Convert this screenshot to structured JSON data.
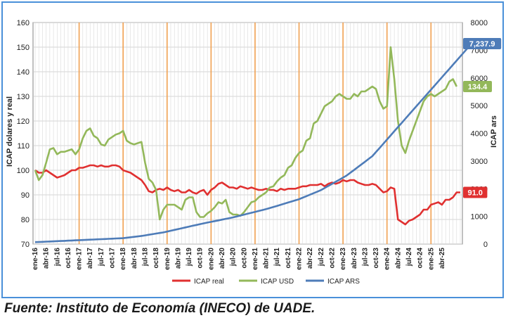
{
  "footer": {
    "source": "Fuente: Instituto de Economía (INECO) de UADE."
  },
  "chart_data": {
    "type": "line",
    "title": "",
    "ylabel_left": "ICAP dolares y real",
    "ylabel_right": "ICAP ars",
    "ylim_left": [
      70,
      160
    ],
    "ylim_right": [
      0,
      8000
    ],
    "yticks_left": [
      "70",
      "80",
      "90",
      "100",
      "110",
      "120",
      "130",
      "140",
      "150",
      "160"
    ],
    "yticks_right": [
      "0",
      "1000",
      "2000",
      "3000",
      "4000",
      "5000",
      "6000",
      "7000",
      "8000"
    ],
    "x_tick_labels": [
      "ene-16",
      "abr-16",
      "jul-16",
      "oct-16",
      "ene-17",
      "abr-17",
      "jul-17",
      "oct-17",
      "ene-18",
      "abr-18",
      "jul-18",
      "oct-18",
      "ene-19",
      "abr-19",
      "jul-19",
      "oct-19",
      "ene-20",
      "abr-20",
      "jul-20",
      "oct-20",
      "ene-21",
      "abr-21",
      "jul-21",
      "oct-21",
      "ene-22",
      "abr-22",
      "jul-22",
      "oct-22",
      "ene-23",
      "abr-23",
      "jul-23",
      "oct-23",
      "ene-24",
      "abr-24",
      "jul-24",
      "oct-24",
      "ene-25",
      "abr-25"
    ],
    "vertical_markers": [
      "ene-17",
      "ene-18",
      "ene-19",
      "ene-20",
      "ene-21",
      "ene-22",
      "ene-23",
      "ene-24",
      "ene-25"
    ],
    "grid": true,
    "legend_position": "bottom",
    "series": [
      {
        "name": "ICAP real",
        "axis": "left",
        "color": "#e03030",
        "end_label": "91.0",
        "values": [
          100,
          99,
          99,
          100,
          99,
          98,
          97,
          97.5,
          98,
          99,
          100,
          100,
          101,
          101,
          101.5,
          102,
          102,
          101.5,
          102,
          101.5,
          101.5,
          102,
          102,
          101.5,
          100,
          99.5,
          99,
          98,
          97,
          96,
          94,
          91.5,
          91,
          92,
          92.5,
          92,
          93,
          92,
          91.5,
          92,
          91,
          91,
          92,
          91,
          90.5,
          91.5,
          92,
          90,
          92,
          93,
          94.5,
          95,
          94,
          93,
          93,
          92.5,
          93.5,
          93,
          92.5,
          93,
          92.5,
          92,
          92,
          92.5,
          92,
          92,
          91.5,
          92.5,
          92,
          92.5,
          92.5,
          92.5,
          93,
          93.5,
          93.5,
          94,
          94,
          94,
          94.5,
          93.5,
          94.5,
          95,
          94.5,
          95,
          96,
          95.5,
          96,
          96,
          95,
          94.5,
          94,
          94,
          94.5,
          94,
          92.5,
          91,
          91.5,
          93,
          92.5,
          80,
          79,
          78,
          79.5,
          80,
          81,
          82,
          84,
          84,
          86,
          86.5,
          87,
          86,
          88,
          88,
          89,
          91,
          91
        ]
      },
      {
        "name": "ICAP USD",
        "axis": "left",
        "color": "#93b85a",
        "end_label": "134.4",
        "values": [
          100,
          96,
          98,
          103,
          108.5,
          109,
          106.5,
          107.5,
          107.5,
          108,
          108.5,
          106.5,
          108.5,
          113,
          116,
          117,
          114,
          113,
          110.5,
          110,
          112.5,
          113.5,
          114.5,
          115,
          116,
          112,
          111,
          110.5,
          111,
          111.5,
          103,
          96.5,
          95,
          92,
          80,
          84,
          86,
          86,
          86,
          85,
          84,
          88,
          89,
          89,
          83,
          81,
          81,
          82.5,
          83.5,
          85,
          87,
          86.5,
          88,
          83,
          82,
          82,
          81.5,
          83,
          85,
          87,
          87.5,
          89,
          90,
          91,
          93,
          93.5,
          95.5,
          97,
          98,
          101,
          102,
          105,
          107,
          108,
          112,
          113,
          119,
          120,
          123,
          126,
          127,
          128,
          130,
          131,
          130,
          129,
          129,
          131,
          130,
          132,
          132,
          133,
          134,
          133,
          128,
          125,
          126,
          150,
          137,
          120,
          110,
          107,
          112,
          116,
          120,
          124,
          128,
          130,
          131,
          130,
          131,
          132,
          133,
          136,
          137,
          134
        ]
      },
      {
        "name": "ICAP ARS",
        "axis": "right",
        "color": "#4e7cb8",
        "end_label": "7,237.9",
        "values": [
          70,
          76,
          82,
          88,
          94,
          100,
          106,
          112,
          118,
          124,
          130,
          136,
          142,
          148,
          154,
          160,
          166,
          172,
          178,
          184,
          190,
          196,
          202,
          208,
          214,
          230,
          246,
          262,
          278,
          294,
          315,
          337,
          358,
          380,
          401,
          422,
          452,
          482,
          512,
          542,
          572,
          602,
          632,
          662,
          692,
          722,
          749,
          776,
          803,
          830,
          857,
          884,
          911,
          938,
          965,
          998,
          1031,
          1064,
          1097,
          1130,
          1163,
          1196,
          1229,
          1262,
          1300,
          1340,
          1380,
          1420,
          1460,
          1500,
          1540,
          1580,
          1620,
          1675,
          1730,
          1785,
          1840,
          1895,
          1950,
          2025,
          2100,
          2175,
          2250,
          2325,
          2400,
          2475,
          2575,
          2675,
          2775,
          2875,
          2975,
          3075,
          3175,
          3325,
          3475,
          3625,
          3775,
          3925,
          4075,
          4225,
          4375,
          4525,
          4675,
          4825,
          4975,
          5125,
          5275,
          5425,
          5575,
          5725,
          5875,
          6025,
          6175,
          6325,
          6475,
          6625,
          6775,
          6925,
          7075,
          7237.9
        ]
      }
    ]
  }
}
